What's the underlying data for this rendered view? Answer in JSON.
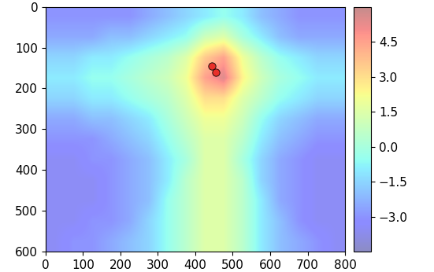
{
  "chart_data": {
    "type": "heatmap",
    "xlim": [
      0,
      800
    ],
    "xticks": [
      0,
      100,
      200,
      300,
      400,
      500,
      600,
      700,
      800
    ],
    "ylim": [
      600,
      0
    ],
    "yticks": [
      0,
      100,
      200,
      300,
      400,
      500,
      600
    ],
    "cells": [
      [
        -3,
        -3,
        -3,
        -3,
        -3,
        -2.5,
        -2,
        -1.5,
        -1,
        -0.5,
        -1,
        -2,
        -2.5,
        -3,
        -3,
        -3
      ],
      [
        -2.5,
        -2.5,
        -2.5,
        -2,
        -2,
        -1.5,
        -1,
        -0.5,
        1,
        1.5,
        0,
        -1,
        -2,
        -2.5,
        -2.5,
        -2.5
      ],
      [
        -1.5,
        -1.5,
        -1,
        -1,
        -0.5,
        0,
        0.5,
        1.5,
        3.5,
        4.5,
        2,
        0.5,
        -0.5,
        -1,
        -1.5,
        -1.5
      ],
      [
        -1,
        -1,
        -0.5,
        -0.5,
        0,
        0.5,
        1,
        2,
        4.5,
        5.5,
        2.5,
        1,
        0,
        -0.5,
        -1,
        -1
      ],
      [
        -1.5,
        -1.5,
        -1,
        -1,
        -0.5,
        0,
        0.5,
        1.5,
        3,
        3,
        1.5,
        0.5,
        -0.5,
        -1,
        -1.5,
        -1.5
      ],
      [
        -2.5,
        -2.5,
        -2,
        -2,
        -1.5,
        -1,
        0,
        1,
        2,
        2,
        1,
        -0.5,
        -1.5,
        -2,
        -2.5,
        -2.5
      ],
      [
        -3,
        -3,
        -3,
        -2.5,
        -2,
        -1.5,
        -0.5,
        0.5,
        1.5,
        1.5,
        0.5,
        -1,
        -2,
        -2.5,
        -3,
        -3
      ],
      [
        -3.5,
        -3.5,
        -3,
        -3,
        -2.5,
        -2,
        -1,
        0,
        1.5,
        1.5,
        0,
        -1.5,
        -2.5,
        -3,
        -3.5,
        -3.5
      ],
      [
        -3.5,
        -3.5,
        -3.5,
        -3,
        -2.5,
        -2,
        -1,
        0.5,
        1.5,
        1.5,
        0.5,
        -1.5,
        -2.5,
        -3,
        -3.5,
        -3.5
      ],
      [
        -3.5,
        -3.5,
        -3.5,
        -3,
        -2.5,
        -2,
        -0.5,
        0.5,
        1.5,
        1.5,
        0.5,
        -1,
        -2.5,
        -3,
        -3.5,
        -3.5
      ],
      [
        -3.5,
        -3.5,
        -3,
        -3,
        -2.5,
        -1.5,
        -0.5,
        0.5,
        1.5,
        1.5,
        0.5,
        -1,
        -2,
        -3,
        -3.5,
        -3.5
      ],
      [
        -3.5,
        -3,
        -3,
        -2.5,
        -2,
        -1.5,
        -0.5,
        0.5,
        1.5,
        1.5,
        0.5,
        -1,
        -2,
        -2.5,
        -3,
        -3.5
      ]
    ],
    "colorbar": {
      "range": [
        -4.5,
        6
      ],
      "ticks": [
        {
          "value": -3,
          "label": "−3.0"
        },
        {
          "value": -1.5,
          "label": "−1.5"
        },
        {
          "value": 0,
          "label": "0.0"
        },
        {
          "value": 1.5,
          "label": "1.5"
        },
        {
          "value": 3,
          "label": "3.0"
        },
        {
          "value": 4.5,
          "label": "4.5"
        }
      ]
    },
    "markers": {
      "x": [
        445,
        455
      ],
      "y": [
        145,
        160
      ],
      "color": "#e8302a",
      "marker": "circle"
    }
  }
}
